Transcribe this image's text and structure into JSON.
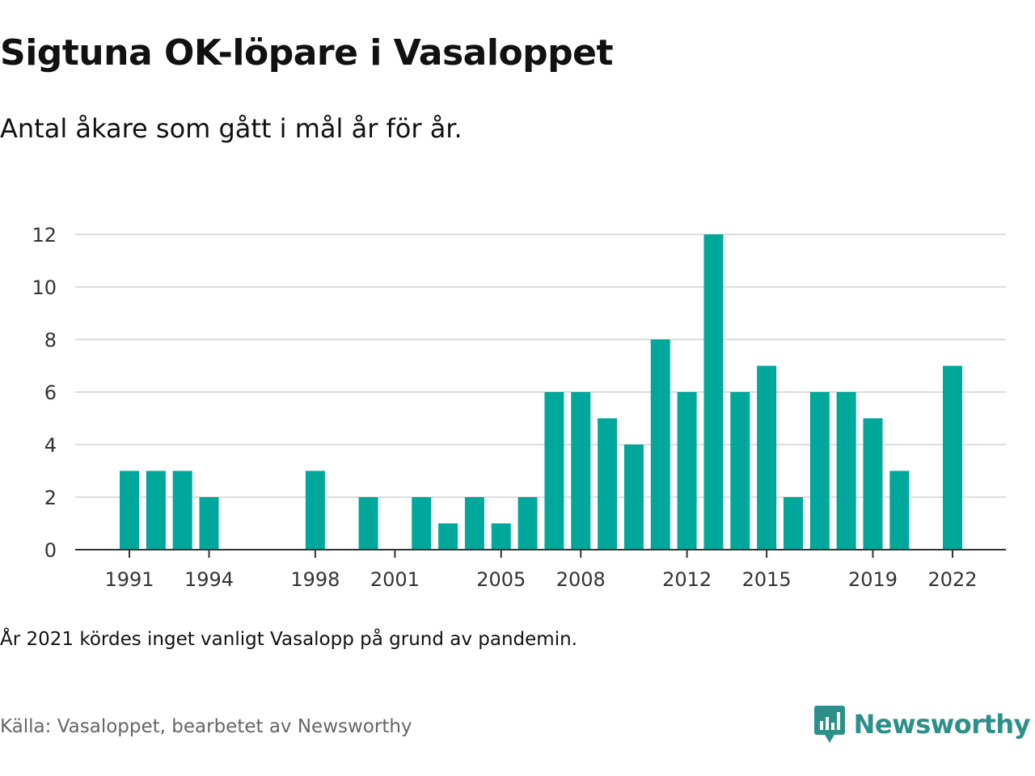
{
  "header": {
    "title": "Sigtuna OK-löpare i Vasaloppet",
    "subtitle": "Antal åkare som gått i mål år för år."
  },
  "footer": {
    "note": "År 2021 kördes inget vanligt Vasalopp på grund av pandemin.",
    "source": "Källa: Vasaloppet, bearbetet av Newsworthy",
    "brand": "Newsworthy"
  },
  "colors": {
    "bar": "#00a89c",
    "grid": "#dddddd",
    "axis": "#333333",
    "brand": "#2c8f8a"
  },
  "icons": {
    "logo": "newsworthy-chart-logo-icon"
  },
  "chart_data": {
    "type": "bar",
    "title": "Sigtuna OK-löpare i Vasaloppet",
    "xlabel": "",
    "ylabel": "",
    "ylim": [
      0,
      12
    ],
    "yticks": [
      0,
      2,
      4,
      6,
      8,
      10,
      12
    ],
    "xticks": [
      1991,
      1994,
      1998,
      2001,
      2005,
      2008,
      2012,
      2015,
      2019,
      2022
    ],
    "grid": true,
    "legend": "none",
    "categories": [
      1991,
      1992,
      1993,
      1994,
      1998,
      2000,
      2002,
      2003,
      2004,
      2005,
      2006,
      2007,
      2008,
      2009,
      2010,
      2011,
      2012,
      2013,
      2014,
      2015,
      2016,
      2017,
      2018,
      2019,
      2020,
      2022
    ],
    "values": [
      3,
      3,
      3,
      2,
      3,
      2,
      2,
      1,
      2,
      1,
      2,
      6,
      6,
      5,
      4,
      8,
      6,
      12,
      6,
      7,
      2,
      6,
      6,
      5,
      3,
      7
    ]
  }
}
